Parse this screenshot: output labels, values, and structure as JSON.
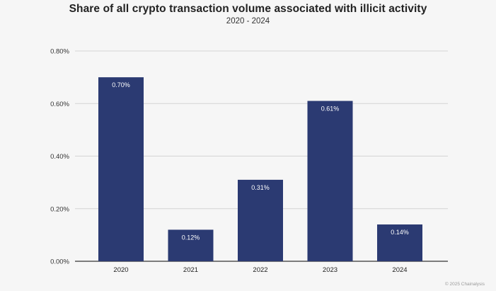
{
  "chart_data": {
    "type": "bar",
    "title": "Share of all crypto transaction volume associated with illicit activity",
    "subtitle": "2020 - 2024",
    "xlabel": "",
    "ylabel": "",
    "categories": [
      "2020",
      "2021",
      "2022",
      "2023",
      "2024"
    ],
    "values": [
      0.7,
      0.12,
      0.31,
      0.61,
      0.14
    ],
    "data_labels": [
      "0.70%",
      "0.12%",
      "0.31%",
      "0.61%",
      "0.14%"
    ],
    "ylim": [
      0,
      0.8
    ],
    "yticks": [
      0,
      0.2,
      0.4,
      0.6,
      0.8
    ],
    "ytick_labels": [
      "0.00%",
      "0.20%",
      "0.40%",
      "0.60%",
      "0.80%"
    ],
    "grid": true,
    "bar_color": "#2b3a72",
    "label_color": "#ffffff"
  },
  "credit": "© 2025 Chainalysis"
}
